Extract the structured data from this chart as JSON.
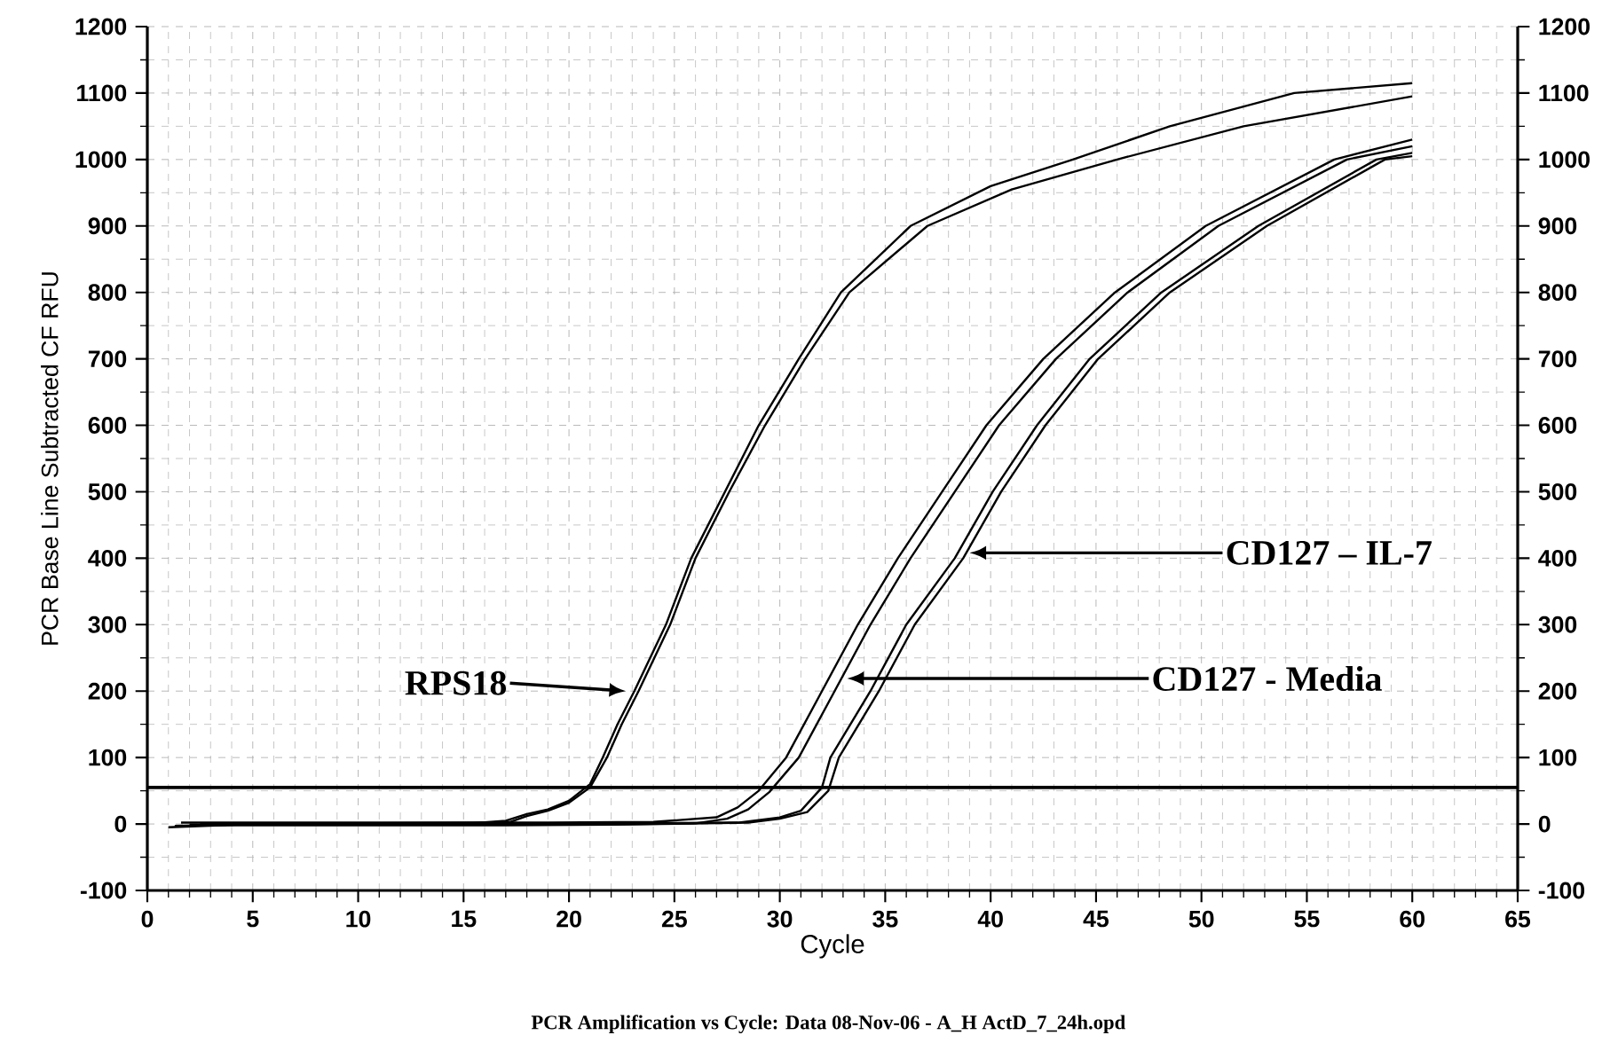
{
  "chart_data": {
    "type": "line",
    "xlabel": "Cycle",
    "ylabel": "PCR Base Line Subtracted CF RFU",
    "annotations": [
      "RPS18",
      {
        "text": "CD127 – IL-7",
        "x": 39,
        "y": 408
      },
      {
        "text": "CD127 - Media",
        "x": 33.2,
        "y": 219
      },
      "PCR Amplification vs Cycle: Data 08-Nov-06 - A_H ActD_7_24h.opd"
    ],
    "xlim": [
      0,
      65
    ],
    "xticks": [
      0,
      5,
      10,
      15,
      20,
      25,
      30,
      35,
      40,
      45,
      50,
      55,
      60,
      65
    ],
    "ylim": [
      -100,
      1200
    ],
    "yticks": [
      -100,
      0,
      100,
      200,
      300,
      400,
      500,
      600,
      700,
      800,
      900,
      1000,
      1100,
      1200
    ],
    "y2lim": [
      -100,
      1200
    ],
    "y2ticks": [
      -100,
      0,
      100,
      200,
      300,
      400,
      500,
      600,
      700,
      800,
      900,
      1000,
      1100,
      1200
    ],
    "grid": true,
    "ref_lines": [
      {
        "axis": "y",
        "value": 55,
        "color": "#000000"
      }
    ],
    "series": [
      {
        "color": "#000000",
        "x": [
          1,
          5,
          10,
          15,
          17,
          18,
          19,
          20,
          21,
          21.6,
          22.3,
          23.1,
          24.6,
          25.8,
          27.4,
          29,
          30.9,
          32.9,
          36.2,
          40,
          43.9,
          48.5,
          54.4,
          60
        ],
        "values": [
          -5,
          0,
          0,
          0,
          5,
          15,
          22,
          35,
          60,
          100,
          150,
          200,
          300,
          400,
          500,
          600,
          700,
          800,
          900,
          960,
          1000,
          1050,
          1100,
          1115
        ]
      },
      {
        "color": "#000000",
        "x": [
          1.3,
          6,
          11,
          16,
          17.2,
          18,
          19,
          20,
          21,
          21.8,
          22.5,
          23.3,
          24.8,
          26,
          27.6,
          29.3,
          31.2,
          33.3,
          37,
          41,
          46,
          52,
          60
        ],
        "values": [
          -3,
          1,
          1,
          2,
          3,
          12,
          20,
          32,
          55,
          100,
          150,
          200,
          300,
          400,
          500,
          600,
          700,
          800,
          900,
          955,
          1000,
          1050,
          1095
        ]
      },
      {
        "color": "#000000",
        "x": [
          1.6,
          9,
          19,
          24,
          27,
          28,
          29,
          30.3,
          32,
          33.7,
          35.6,
          37.7,
          39.8,
          42.5,
          45.9,
          50.2,
          56.3,
          60
        ],
        "values": [
          2,
          2,
          2,
          3,
          10,
          25,
          50,
          100,
          200,
          300,
          400,
          500,
          600,
          700,
          800,
          900,
          1000,
          1030
        ]
      },
      {
        "color": "#000000",
        "x": [
          2,
          12,
          21,
          26,
          27.5,
          28.5,
          29.5,
          30.9,
          32.6,
          34.3,
          36.2,
          38.3,
          40.4,
          43.1,
          46.5,
          50.8,
          56.9,
          60
        ],
        "values": [
          -1,
          -1,
          -1,
          1,
          8,
          22,
          48,
          100,
          200,
          300,
          400,
          500,
          600,
          700,
          800,
          900,
          1000,
          1020
        ]
      },
      {
        "color": "#000000",
        "x": [
          2.5,
          8,
          18,
          23,
          28,
          30,
          31,
          32,
          32.4,
          34.3,
          36,
          38.3,
          40.1,
          42.2,
          44.7,
          48.1,
          52.7,
          58.3,
          60
        ],
        "values": [
          1,
          1,
          1,
          1,
          2,
          10,
          20,
          55,
          100,
          200,
          300,
          400,
          500,
          600,
          700,
          800,
          900,
          1000,
          1010
        ]
      },
      {
        "color": "#000000",
        "x": [
          3,
          13,
          17,
          22,
          28.5,
          30,
          31.3,
          32.3,
          32.8,
          34.7,
          36.4,
          38.7,
          40.5,
          42.6,
          45.1,
          48.5,
          53.1,
          58.7,
          60
        ],
        "values": [
          -2,
          -2,
          -2,
          -1,
          2,
          8,
          18,
          50,
          100,
          200,
          300,
          400,
          500,
          600,
          700,
          800,
          900,
          1000,
          1005
        ]
      }
    ]
  }
}
